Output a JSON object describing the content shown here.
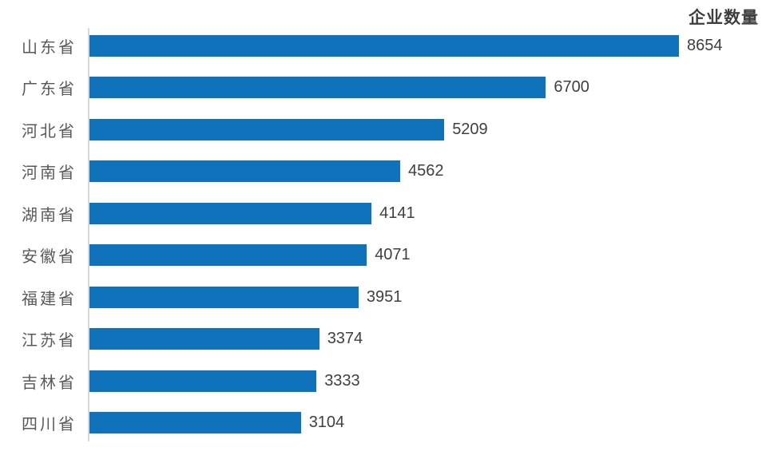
{
  "chart_data": {
    "type": "bar",
    "orientation": "horizontal",
    "title": "企业数量",
    "categories": [
      "山东省",
      "广东省",
      "河北省",
      "河南省",
      "湖南省",
      "安徽省",
      "福建省",
      "江苏省",
      "吉林省",
      "四川省"
    ],
    "values": [
      8654,
      6700,
      5209,
      4562,
      4141,
      4071,
      3951,
      3374,
      3333,
      3104
    ],
    "xlabel": "",
    "ylabel": "",
    "xlim": [
      0,
      8700
    ],
    "grid": false,
    "legend_position": "none",
    "data_labels": true,
    "bar_color": "#1072ba",
    "axis_line_color": "#d9d9d9",
    "value_label_color": "#404040",
    "category_label_color": "#595959",
    "title_color": "#3f3f3f",
    "background_color": "#ffffff"
  }
}
